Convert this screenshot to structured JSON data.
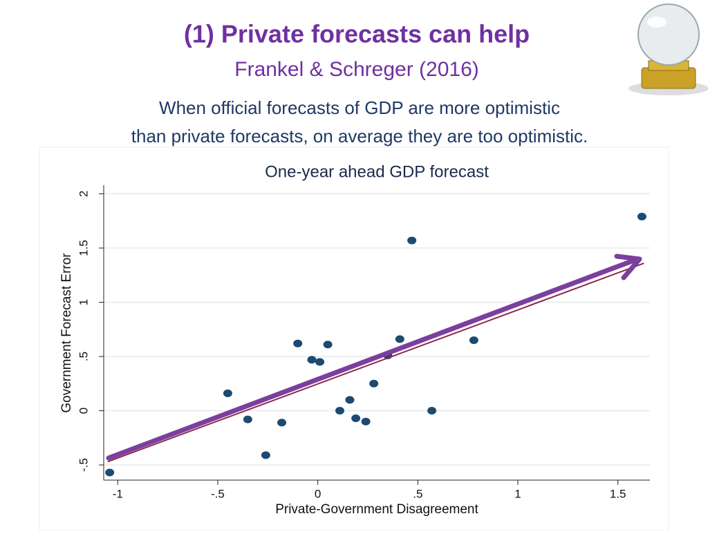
{
  "slide": {
    "title": "(1) Private forecasts can help",
    "subtitle": "Frankel & Schreger (2016)",
    "description": [
      "When official forecasts of GDP are more optimistic",
      "than private forecasts, on average they are too optimistic."
    ]
  },
  "chart_data": {
    "type": "scatter",
    "title": "One-year ahead GDP forecast",
    "x_label": "Private-Government Disagreement",
    "y_label": "Government Forecast Error",
    "color": "#1b4a72",
    "fit_color": "#8b2a4a",
    "grid": true,
    "x": [
      -1.04,
      -0.45,
      -0.35,
      -0.26,
      -0.18,
      -0.1,
      -0.03,
      0.01,
      0.05,
      0.11,
      0.16,
      0.19,
      0.24,
      0.28,
      0.35,
      0.41,
      0.47,
      0.57,
      0.78,
      1.62
    ],
    "y": [
      -0.57,
      0.16,
      -0.08,
      -0.41,
      -0.11,
      0.62,
      0.47,
      0.45,
      0.61,
      0.0,
      0.1,
      -0.07,
      -0.1,
      0.25,
      0.51,
      0.66,
      1.57,
      0.0,
      0.65,
      1.79
    ],
    "fit_line": {
      "x": [
        -1.05,
        1.63
      ],
      "y": [
        -0.47,
        1.36
      ]
    },
    "xlim": [
      -1.07,
      1.66
    ],
    "ylim": [
      -0.64,
      2.08
    ],
    "xticks": [
      {
        "value": -1,
        "label": "-1"
      },
      {
        "value": -0.5,
        "label": "-.5"
      },
      0,
      {
        "value": 0.5,
        "label": ".5"
      },
      1,
      1.5
    ],
    "yticks": [
      {
        "value": -0.5,
        "label": "-.5"
      },
      0,
      {
        "value": 0.5,
        "label": ".5"
      },
      1,
      1.5,
      2
    ]
  }
}
